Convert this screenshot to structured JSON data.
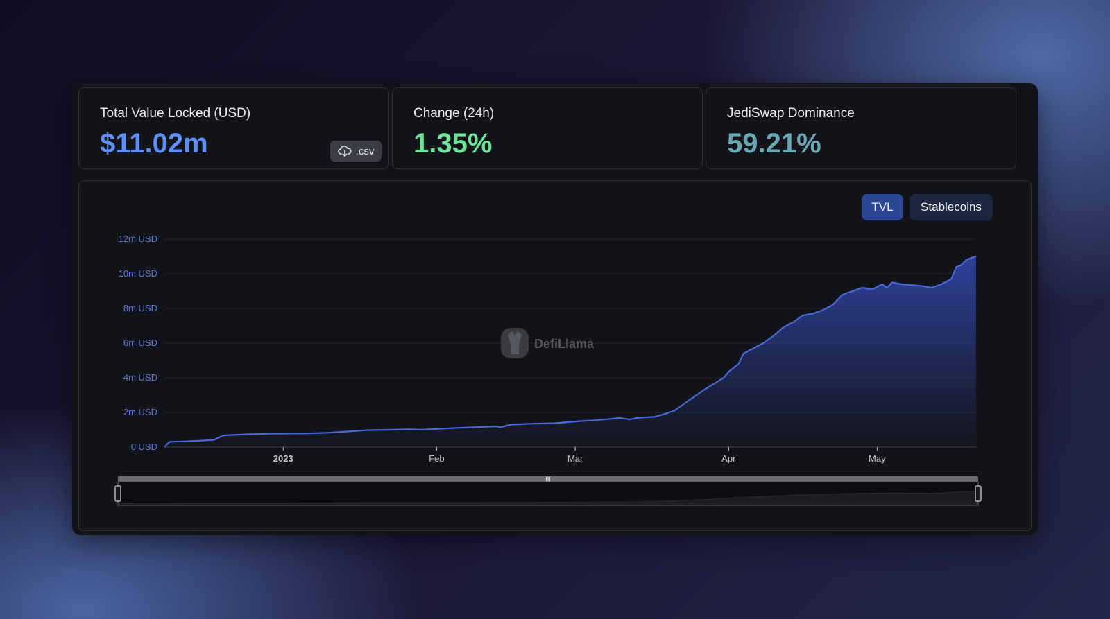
{
  "cards": {
    "tvl": {
      "label": "Total Value Locked (USD)",
      "value": "$11.02m",
      "csv_label": ".csv",
      "value_color": "#5c8ef5"
    },
    "change": {
      "label": "Change (24h)",
      "value": "1.35%",
      "value_color": "#6fe39a"
    },
    "dominance": {
      "label": "JediSwap Dominance",
      "value": "59.21%",
      "value_color": "#68a8b4"
    }
  },
  "toggles": {
    "tvl": "TVL",
    "stablecoins": "Stablecoins"
  },
  "watermark": "DefiLlama",
  "colors": {
    "line": "#4a69d8",
    "fill_top": "#3146a8",
    "axis_label": "#5a7bd8"
  },
  "chart_data": {
    "type": "area",
    "title": "",
    "xlabel": "",
    "ylabel": "",
    "ylim": [
      0,
      12000000
    ],
    "y_ticks": [
      {
        "value": 0,
        "label": "0 USD"
      },
      {
        "value": 2000000,
        "label": "2m USD"
      },
      {
        "value": 4000000,
        "label": "4m USD"
      },
      {
        "value": 6000000,
        "label": "6m USD"
      },
      {
        "value": 8000000,
        "label": "8m USD"
      },
      {
        "value": 10000000,
        "label": "10m USD"
      },
      {
        "value": 12000000,
        "label": "12m USD"
      }
    ],
    "x_range": [
      "2022-12-08",
      "2023-05-21"
    ],
    "x_ticks": [
      {
        "date": "2023-01-01",
        "label": "2023",
        "bold": true
      },
      {
        "date": "2023-02-01",
        "label": "Feb",
        "bold": false
      },
      {
        "date": "2023-03-01",
        "label": "Mar",
        "bold": false
      },
      {
        "date": "2023-04-01",
        "label": "Apr",
        "bold": false
      },
      {
        "date": "2023-05-01",
        "label": "May",
        "bold": false
      }
    ],
    "grid": true,
    "legend": "none",
    "series": [
      {
        "points": [
          [
            "2022-12-08",
            0.0
          ],
          [
            "2022-12-09",
            300000
          ],
          [
            "2022-12-12",
            330000
          ],
          [
            "2022-12-16",
            380000
          ],
          [
            "2022-12-18",
            420000
          ],
          [
            "2022-12-20",
            680000
          ],
          [
            "2022-12-25",
            740000
          ],
          [
            "2022-12-30",
            780000
          ],
          [
            "2023-01-05",
            790000
          ],
          [
            "2023-01-10",
            830000
          ],
          [
            "2023-01-15",
            920000
          ],
          [
            "2023-01-18",
            980000
          ],
          [
            "2023-01-23",
            1000000
          ],
          [
            "2023-01-26",
            1030000
          ],
          [
            "2023-01-29",
            1010000
          ],
          [
            "2023-02-01",
            1050000
          ],
          [
            "2023-02-05",
            1110000
          ],
          [
            "2023-02-10",
            1160000
          ],
          [
            "2023-02-13",
            1200000
          ],
          [
            "2023-02-14",
            1150000
          ],
          [
            "2023-02-16",
            1300000
          ],
          [
            "2023-02-20",
            1350000
          ],
          [
            "2023-02-25",
            1380000
          ],
          [
            "2023-03-01",
            1480000
          ],
          [
            "2023-03-05",
            1550000
          ],
          [
            "2023-03-10",
            1680000
          ],
          [
            "2023-03-12",
            1600000
          ],
          [
            "2023-03-14",
            1700000
          ],
          [
            "2023-03-17",
            1750000
          ],
          [
            "2023-03-19",
            1900000
          ],
          [
            "2023-03-21",
            2100000
          ],
          [
            "2023-03-23",
            2500000
          ],
          [
            "2023-03-25",
            2900000
          ],
          [
            "2023-03-27",
            3300000
          ],
          [
            "2023-03-29",
            3650000
          ],
          [
            "2023-03-31",
            4000000
          ],
          [
            "2023-04-01",
            4350000
          ],
          [
            "2023-04-03",
            4800000
          ],
          [
            "2023-04-04",
            5400000
          ],
          [
            "2023-04-06",
            5700000
          ],
          [
            "2023-04-08",
            6000000
          ],
          [
            "2023-04-10",
            6400000
          ],
          [
            "2023-04-12",
            6900000
          ],
          [
            "2023-04-14",
            7200000
          ],
          [
            "2023-04-16",
            7600000
          ],
          [
            "2023-04-18",
            7700000
          ],
          [
            "2023-04-20",
            7900000
          ],
          [
            "2023-04-22",
            8200000
          ],
          [
            "2023-04-24",
            8800000
          ],
          [
            "2023-04-26",
            9000000
          ],
          [
            "2023-04-28",
            9200000
          ],
          [
            "2023-04-30",
            9100000
          ],
          [
            "2023-05-02",
            9400000
          ],
          [
            "2023-05-03",
            9200000
          ],
          [
            "2023-05-04",
            9500000
          ],
          [
            "2023-05-06",
            9400000
          ],
          [
            "2023-05-10",
            9300000
          ],
          [
            "2023-05-12",
            9200000
          ],
          [
            "2023-05-14",
            9400000
          ],
          [
            "2023-05-16",
            9700000
          ],
          [
            "2023-05-17",
            10400000
          ],
          [
            "2023-05-18",
            10500000
          ],
          [
            "2023-05-19",
            10800000
          ],
          [
            "2023-05-21",
            11020000
          ]
        ]
      }
    ]
  }
}
